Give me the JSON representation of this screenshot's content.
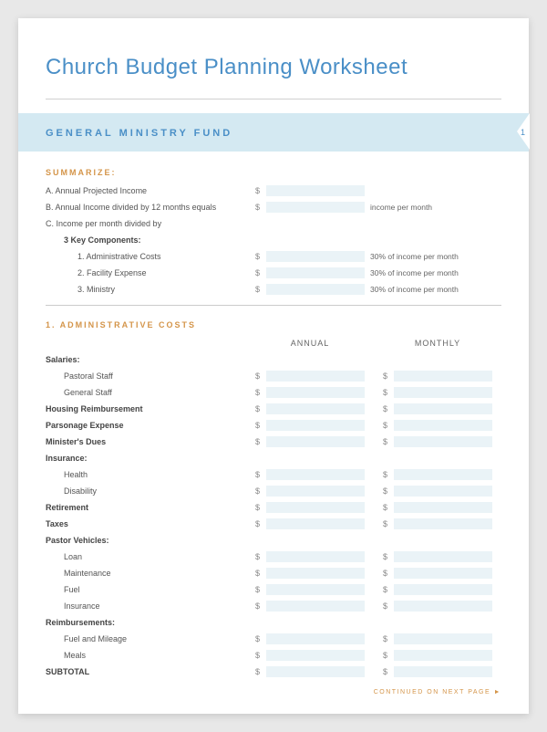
{
  "title": "Church Budget Planning Worksheet",
  "banner": {
    "text": "GENERAL MINISTRY FUND",
    "page_number": "1"
  },
  "colors": {
    "accent_blue": "#4a8fc7",
    "banner_bg": "#d4e9f2",
    "accent_orange": "#d4954a",
    "fill_bg": "#eaf3f7",
    "page_bg": "#ffffff",
    "text": "#555555"
  },
  "summarize": {
    "heading": "SUMMARIZE:",
    "rows": [
      {
        "label": "A. Annual Projected Income",
        "has_fill": true,
        "note": ""
      },
      {
        "label": "B. Annual Income divided by 12 months equals",
        "has_fill": true,
        "note": "income per month"
      },
      {
        "label": "C. Income per month divided by",
        "has_fill": false,
        "note": ""
      }
    ],
    "components_heading": "3 Key Components:",
    "components": [
      {
        "label": "1. Administrative Costs",
        "note": "30% of income per month"
      },
      {
        "label": "2. Facility Expense",
        "note": "30% of income per month"
      },
      {
        "label": "3. Ministry",
        "note": "30% of income per month"
      }
    ]
  },
  "admin": {
    "heading": "1. ADMINISTRATIVE COSTS",
    "col1": "ANNUAL",
    "col2": "MONTHLY",
    "rows": [
      {
        "label": "Salaries:",
        "bold": true,
        "fill": false
      },
      {
        "label": "Pastoral Staff",
        "indent": 1,
        "fill": true
      },
      {
        "label": "General Staff",
        "indent": 1,
        "fill": true
      },
      {
        "label": "Housing Reimbursement",
        "bold": true,
        "fill": true
      },
      {
        "label": "Parsonage Expense",
        "bold": true,
        "fill": true
      },
      {
        "label": "Minister's Dues",
        "bold": true,
        "fill": true
      },
      {
        "label": "Insurance:",
        "bold": true,
        "fill": false
      },
      {
        "label": "Health",
        "indent": 1,
        "fill": true
      },
      {
        "label": "Disability",
        "indent": 1,
        "fill": true
      },
      {
        "label": "Retirement",
        "bold": true,
        "fill": true
      },
      {
        "label": "Taxes",
        "bold": true,
        "fill": true
      },
      {
        "label": "Pastor Vehicles:",
        "bold": true,
        "fill": false
      },
      {
        "label": "Loan",
        "indent": 1,
        "fill": true
      },
      {
        "label": "Maintenance",
        "indent": 1,
        "fill": true
      },
      {
        "label": "Fuel",
        "indent": 1,
        "fill": true
      },
      {
        "label": "Insurance",
        "indent": 1,
        "fill": true
      },
      {
        "label": "Reimbursements:",
        "bold": true,
        "fill": false
      },
      {
        "label": "Fuel and Mileage",
        "indent": 1,
        "fill": true
      },
      {
        "label": "Meals",
        "indent": 1,
        "fill": true
      },
      {
        "label": "SUBTOTAL",
        "bold": true,
        "fill": true
      }
    ]
  },
  "footer": "CONTINUED ON NEXT PAGE ►",
  "dollar_sign": "$"
}
